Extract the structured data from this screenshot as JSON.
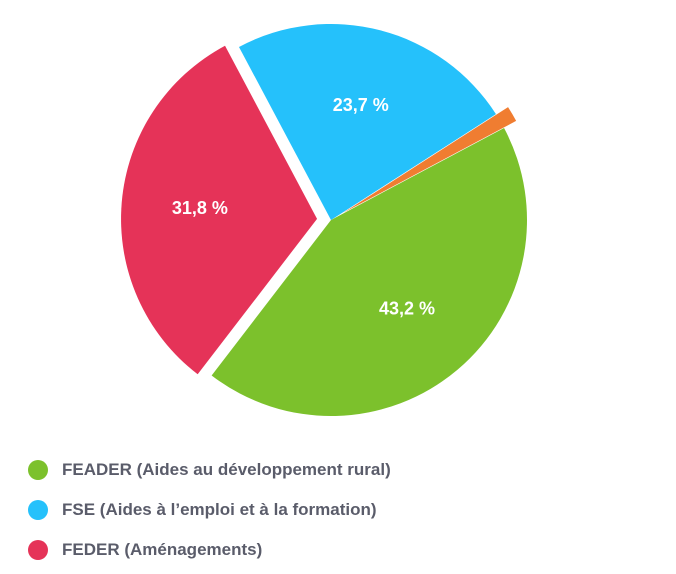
{
  "chart_data": {
    "type": "pie",
    "slices": [
      {
        "label": "FEADER (Aides au développement rural)",
        "value": 43.2,
        "value_label": "43,2 %",
        "color": "#7cc12c",
        "exploded": false,
        "in_legend": true
      },
      {
        "label": "FEDER (Aménagements)",
        "value": 31.8,
        "value_label": "31,8 %",
        "color": "#e53358",
        "exploded": true,
        "in_legend": true
      },
      {
        "label": "FSE (Aides à l’emploi et à la formation)",
        "value": 23.7,
        "value_label": "23,7 %",
        "color": "#25c1fb",
        "exploded": false,
        "in_legend": true
      },
      {
        "label": "",
        "value": 1.3,
        "value_label": "",
        "color": "#f07d31",
        "exploded": true,
        "in_legend": false
      }
    ],
    "legend": {
      "placement": "bottom-left",
      "items": [
        {
          "label": "FEADER (Aides au développement rural)",
          "color": "#7cc12c"
        },
        {
          "label": "FSE (Aides à l’emploi et à la formation)",
          "color": "#25c1fb"
        },
        {
          "label": "FEDER (Aménagements)",
          "color": "#e53358"
        }
      ]
    }
  }
}
